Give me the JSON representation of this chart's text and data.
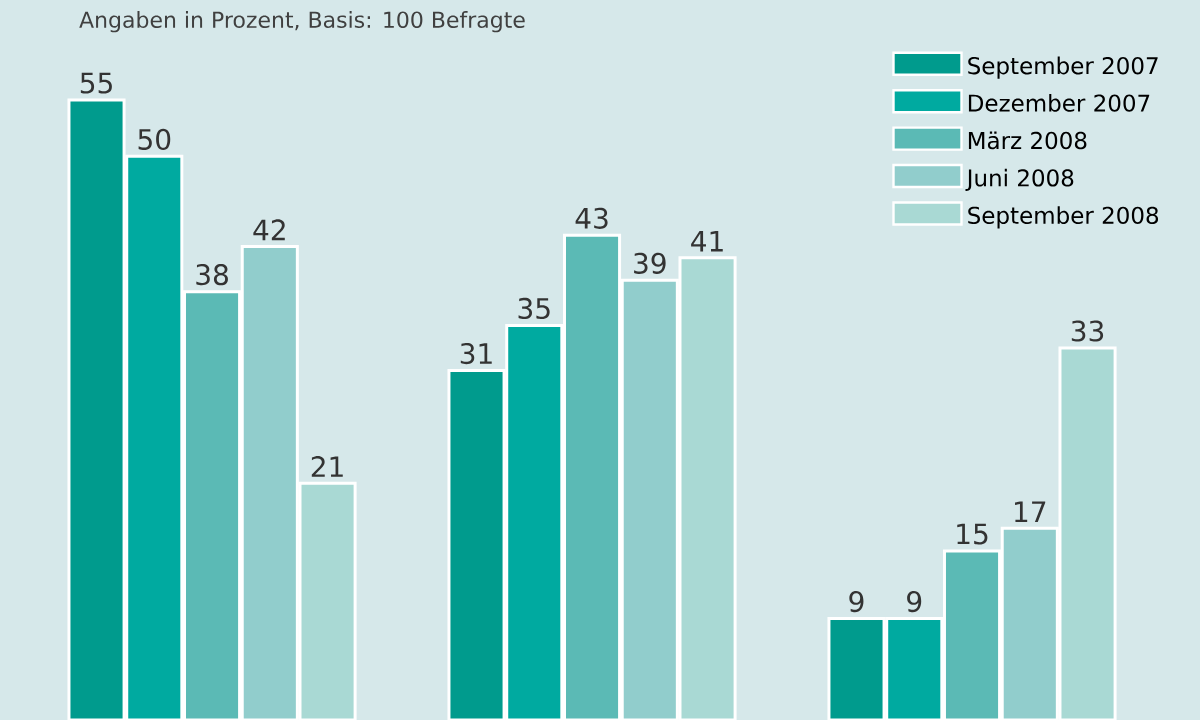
{
  "chart_data": {
    "type": "bar",
    "subtitle": "Angaben in Prozent, Basis: 100 Befragte",
    "categories": [
      null,
      null,
      null
    ],
    "series": [
      {
        "name": "September 2007",
        "color": "#009b8d",
        "values": [
          55,
          31,
          9
        ]
      },
      {
        "name": "Dezember 2007",
        "color": "#00aaa0",
        "values": [
          50,
          35,
          9
        ]
      },
      {
        "name": "März 2008",
        "color": "#5bbab5",
        "values": [
          38,
          43,
          15
        ]
      },
      {
        "name": "Juni 2008",
        "color": "#91cdcc",
        "values": [
          42,
          39,
          17
        ]
      },
      {
        "name": "September 2008",
        "color": "#a9d9d4",
        "values": [
          21,
          41,
          33
        ]
      }
    ],
    "data_labels": true,
    "legend": "top right"
  }
}
